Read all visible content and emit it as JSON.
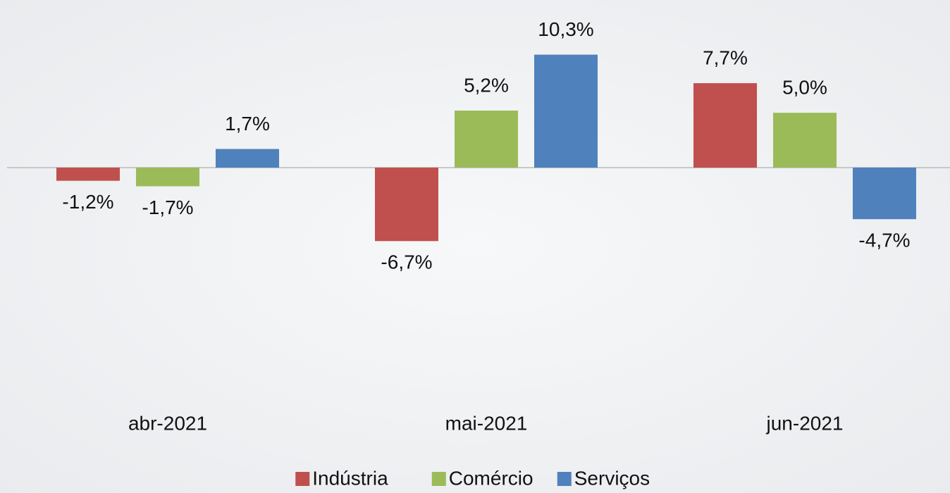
{
  "chart_data": {
    "type": "bar",
    "categories": [
      "abr-2021",
      "mai-2021",
      "jun-2021"
    ],
    "series": [
      {
        "name": "Indústria",
        "color": "#c0504d",
        "values": [
          -1.2,
          -6.7,
          7.7
        ],
        "value_labels": [
          "-1,2%",
          "-6,7%",
          "7,7%"
        ]
      },
      {
        "name": "Comércio",
        "color": "#9bbb59",
        "values": [
          -1.7,
          5.2,
          5.0
        ],
        "value_labels": [
          "-1,7%",
          "5,2%",
          "5,0%"
        ]
      },
      {
        "name": "Serviços",
        "color": "#4f81bd",
        "values": [
          1.7,
          10.3,
          -4.7
        ],
        "value_labels": [
          "1,7%",
          "10,3%",
          "-4,7%"
        ]
      }
    ],
    "ylim": [
      -14,
      14
    ],
    "legend": "bottom"
  }
}
